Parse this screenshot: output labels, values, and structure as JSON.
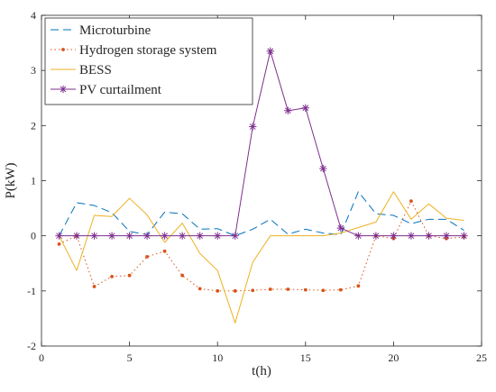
{
  "chart_data": {
    "type": "line",
    "xlabel": "t(h)",
    "ylabel": "P(kW)",
    "xlim": [
      0,
      25
    ],
    "ylim": [
      -2,
      4
    ],
    "xticks": [
      0,
      5,
      10,
      15,
      20,
      25
    ],
    "yticks": [
      -2,
      -1,
      0,
      1,
      2,
      3,
      4
    ],
    "grid": false,
    "legend_position": "top-left",
    "x": [
      1,
      2,
      3,
      4,
      5,
      6,
      7,
      8,
      9,
      10,
      11,
      12,
      13,
      14,
      15,
      16,
      17,
      18,
      19,
      20,
      21,
      22,
      23,
      24
    ],
    "series": [
      {
        "name": "Microturbine",
        "color": "#0072bd",
        "line_style": "dashed",
        "marker": "none",
        "values": [
          0.0,
          0.6,
          0.55,
          0.42,
          0.08,
          0.02,
          0.43,
          0.4,
          0.12,
          0.13,
          0.0,
          0.12,
          0.3,
          0.03,
          0.12,
          0.05,
          0.02,
          0.8,
          0.4,
          0.37,
          0.22,
          0.3,
          0.3,
          0.1
        ]
      },
      {
        "name": "Hydrogen storage system",
        "color": "#d95319",
        "line_style": "dotted",
        "marker": "dot",
        "values": [
          -0.15,
          0.0,
          -0.92,
          -0.74,
          -0.72,
          -0.38,
          -0.28,
          -0.72,
          -0.96,
          -1.0,
          -1.0,
          -0.99,
          -0.97,
          -0.97,
          -0.98,
          -0.99,
          -0.98,
          -0.91,
          0.0,
          -0.05,
          0.63,
          0.0,
          -0.05,
          -0.02
        ]
      },
      {
        "name": "BESS",
        "color": "#edb120",
        "line_style": "solid",
        "marker": "none",
        "values": [
          0.0,
          -0.63,
          0.37,
          0.35,
          0.68,
          0.38,
          -0.12,
          0.23,
          -0.32,
          -0.63,
          -1.58,
          -0.48,
          0.0,
          0.0,
          0.0,
          0.0,
          0.05,
          0.15,
          0.25,
          0.8,
          0.3,
          0.58,
          0.32,
          0.28
        ]
      },
      {
        "name": "PV curtailment",
        "color": "#7e2f8e",
        "line_style": "solid",
        "marker": "asterisk",
        "values": [
          0.0,
          0.0,
          0.0,
          0.0,
          0.0,
          0.0,
          0.0,
          0.0,
          0.0,
          0.0,
          0.0,
          1.98,
          3.35,
          2.27,
          2.32,
          1.22,
          0.14,
          0.0,
          0.0,
          0.0,
          0.0,
          0.0,
          0.0,
          0.0
        ]
      }
    ]
  }
}
